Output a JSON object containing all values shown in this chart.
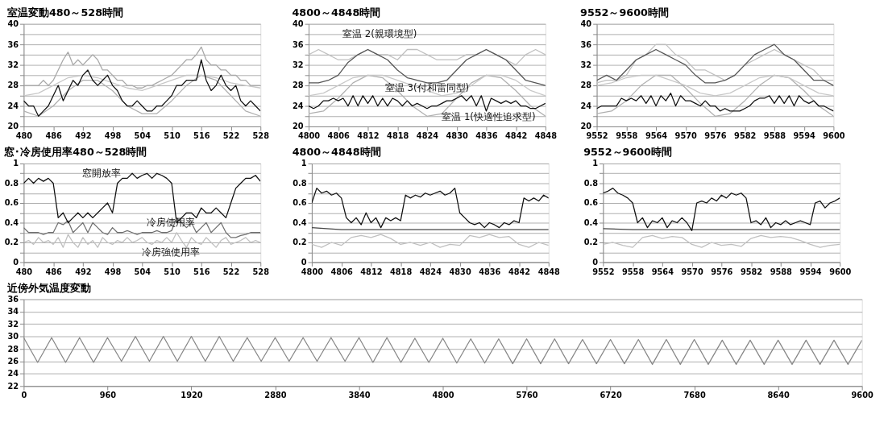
{
  "chart_data": [
    {
      "type": "line",
      "title": "室温変動480～528時間",
      "xlim": [
        480,
        528
      ],
      "xticks": [
        480,
        486,
        492,
        498,
        504,
        510,
        516,
        522,
        528
      ],
      "ylim": [
        20,
        40
      ],
      "yticks": [
        20,
        {
          "value": 22,
          "label": null
        },
        24,
        {
          "value": 26,
          "label": null
        },
        28,
        {
          "value": 30,
          "label": null
        },
        32,
        {
          "value": 34,
          "label": null
        },
        36,
        {
          "value": 38,
          "label": null
        },
        40
      ],
      "grid": "y",
      "series": [
        {
          "color": "#b0b0b0",
          "x": [
            480,
            483,
            486,
            489,
            492,
            495,
            498,
            501,
            504,
            507,
            510,
            513,
            516,
            519,
            522,
            525,
            528
          ],
          "values": [
            23,
            22,
            24,
            27,
            29,
            29,
            27,
            24,
            22.5,
            22.5,
            25,
            28,
            30,
            29,
            26,
            23,
            22
          ]
        },
        {
          "color": "#c8c8c8",
          "x": [
            480,
            483,
            486,
            489,
            492,
            495,
            498,
            501,
            504,
            507,
            510,
            513,
            516,
            519,
            522,
            525,
            528
          ],
          "values": [
            26,
            26.5,
            28,
            29.5,
            30,
            29.5,
            28.5,
            27.5,
            27,
            28,
            29,
            30,
            30,
            29.5,
            28.5,
            28,
            27.5
          ]
        },
        {
          "color": "#a8a8a8",
          "x": [
            480,
            481,
            482,
            483,
            484,
            485,
            486,
            487,
            488,
            489,
            490,
            491,
            492,
            493,
            494,
            495,
            496,
            497,
            498,
            499,
            500,
            501,
            502,
            503,
            504,
            505,
            506,
            507,
            508,
            509,
            510,
            511,
            512,
            513,
            514,
            515,
            516,
            517,
            518,
            519,
            520,
            521,
            522,
            523,
            524,
            525,
            526,
            527,
            528
          ],
          "values": [
            28,
            28,
            28,
            28,
            29,
            28,
            29,
            31,
            33,
            34.5,
            32,
            33,
            32,
            33,
            34,
            33,
            31,
            31,
            30,
            29,
            29,
            28,
            28,
            27.5,
            27.5,
            28,
            28,
            28.5,
            29,
            29.5,
            30,
            31,
            32,
            33,
            33,
            34,
            35.5,
            33,
            32,
            32,
            31,
            31,
            30,
            30,
            29,
            29,
            28,
            28,
            28
          ]
        },
        {
          "color": "#111111",
          "x": [
            480,
            481,
            482,
            483,
            484,
            485,
            486,
            487,
            488,
            489,
            490,
            491,
            492,
            493,
            494,
            495,
            496,
            497,
            498,
            499,
            500,
            501,
            502,
            503,
            504,
            505,
            506,
            507,
            508,
            509,
            510,
            511,
            512,
            513,
            514,
            515,
            516,
            517,
            518,
            519,
            520,
            521,
            522,
            523,
            524,
            525,
            526,
            527,
            528
          ],
          "values": [
            25,
            24,
            24,
            22,
            23,
            24,
            26,
            28,
            25,
            27,
            29,
            28,
            30,
            31,
            29,
            28,
            29,
            30,
            28,
            27,
            25,
            24,
            24,
            25,
            24,
            23,
            23,
            24,
            24,
            25,
            26,
            28,
            28,
            29,
            29,
            29,
            33,
            29,
            27,
            28,
            30,
            28,
            27,
            28,
            25,
            24,
            25,
            24,
            23
          ]
        }
      ]
    },
    {
      "type": "line",
      "title": "4800～4848時間",
      "xlim": [
        4800,
        4848
      ],
      "xticks": [
        4800,
        4806,
        4812,
        4818,
        4824,
        4830,
        4836,
        4842,
        4848
      ],
      "ylim": [
        20,
        40
      ],
      "yticks": [
        20,
        {
          "value": 22,
          "label": null
        },
        24,
        {
          "value": 26,
          "label": null
        },
        28,
        {
          "value": 30,
          "label": null
        },
        32,
        {
          "value": 34,
          "label": null
        },
        36,
        {
          "value": 38,
          "label": null
        },
        40
      ],
      "grid": "y",
      "annotations": [
        "室温 2(親環境型)",
        "室温 3(付和雷同型)",
        "室温 1(快適性追求型)"
      ],
      "series": [
        {
          "color": "#b0b0b0",
          "x": [
            4800,
            4803,
            4806,
            4809,
            4812,
            4815,
            4818,
            4821,
            4824,
            4827,
            4830,
            4833,
            4836,
            4839,
            4842,
            4845,
            4848
          ],
          "values": [
            22.5,
            23,
            25.5,
            28.5,
            30,
            29.5,
            27,
            24,
            22,
            22.5,
            25.5,
            28.5,
            30,
            29.5,
            27,
            24,
            22
          ]
        },
        {
          "color": "#c8c8c8",
          "x": [
            4800,
            4803,
            4806,
            4809,
            4812,
            4815,
            4818,
            4821,
            4824,
            4827,
            4830,
            4833,
            4836,
            4839,
            4842,
            4845,
            4848
          ],
          "values": [
            26,
            26.5,
            28,
            29.5,
            30,
            30,
            29,
            28,
            27,
            26,
            26.5,
            28,
            30,
            30,
            29,
            27,
            26
          ]
        },
        {
          "color": "#c0c0c0",
          "x": [
            4800,
            4802,
            4804,
            4806,
            4808,
            4810,
            4812,
            4814,
            4816,
            4818,
            4820,
            4822,
            4824,
            4826,
            4828,
            4830,
            4832,
            4834,
            4836,
            4838,
            4840,
            4842,
            4844,
            4846,
            4848
          ],
          "values": [
            34,
            35,
            34,
            33,
            33,
            34,
            35,
            34,
            34,
            33,
            35,
            35,
            34,
            33,
            33,
            33,
            34,
            34,
            35,
            34,
            33,
            32,
            34,
            35,
            34
          ]
        },
        {
          "color": "#555555",
          "x": [
            4800,
            4802,
            4804,
            4806,
            4808,
            4810,
            4812,
            4814,
            4816,
            4818,
            4820,
            4822,
            4824,
            4826,
            4828,
            4830,
            4832,
            4834,
            4836,
            4838,
            4840,
            4842,
            4844,
            4846,
            4848
          ],
          "values": [
            28.5,
            28.5,
            29,
            30,
            32.5,
            34,
            35,
            34,
            33,
            31,
            29.5,
            29,
            28.5,
            28.5,
            29,
            31,
            33,
            34,
            35,
            34,
            33,
            31,
            29,
            28.5,
            28
          ]
        },
        {
          "color": "#111111",
          "x": [
            4800,
            4801,
            4802,
            4803,
            4804,
            4805,
            4806,
            4807,
            4808,
            4809,
            4810,
            4811,
            4812,
            4813,
            4814,
            4815,
            4816,
            4817,
            4818,
            4819,
            4820,
            4821,
            4822,
            4823,
            4824,
            4825,
            4826,
            4827,
            4828,
            4829,
            4830,
            4831,
            4832,
            4833,
            4834,
            4835,
            4836,
            4837,
            4838,
            4839,
            4840,
            4841,
            4842,
            4843,
            4844,
            4845,
            4846,
            4847,
            4848
          ],
          "values": [
            24,
            23.5,
            24,
            25,
            25,
            25.5,
            25,
            25.5,
            24,
            26,
            24,
            26,
            24.5,
            26,
            24,
            25.5,
            24,
            25.5,
            25,
            24,
            25,
            24,
            24.5,
            24,
            23.5,
            24,
            24,
            24.5,
            25,
            25,
            25.5,
            26,
            25,
            26,
            24,
            26,
            23,
            25.5,
            25,
            24.5,
            25,
            24.5,
            25,
            24,
            24,
            23.5,
            23.5,
            24,
            24.5
          ]
        }
      ]
    },
    {
      "type": "line",
      "title": "9552～9600時間",
      "xlim": [
        9552,
        9600
      ],
      "xticks": [
        9552,
        9558,
        9564,
        9570,
        9576,
        9582,
        9588,
        9594,
        9600
      ],
      "ylim": [
        20,
        40
      ],
      "yticks": [
        20,
        {
          "value": 22,
          "label": null
        },
        24,
        {
          "value": 26,
          "label": null
        },
        28,
        {
          "value": 30,
          "label": null
        },
        32,
        {
          "value": 34,
          "label": null
        },
        36,
        {
          "value": 38,
          "label": null
        },
        40
      ],
      "grid": "y",
      "series": [
        {
          "color": "#b0b0b0",
          "x": [
            9552,
            9555,
            9558,
            9561,
            9564,
            9567,
            9570,
            9573,
            9576,
            9579,
            9582,
            9585,
            9588,
            9591,
            9594,
            9597,
            9600
          ],
          "values": [
            22.5,
            23,
            25,
            28,
            30,
            30,
            27.5,
            24.5,
            22,
            22.5,
            25,
            28,
            30,
            29.5,
            27,
            24,
            22
          ]
        },
        {
          "color": "#c8c8c8",
          "x": [
            9552,
            9555,
            9558,
            9561,
            9564,
            9567,
            9570,
            9573,
            9576,
            9579,
            9582,
            9585,
            9588,
            9591,
            9594,
            9597,
            9600
          ],
          "values": [
            28,
            28.5,
            29.5,
            30,
            30,
            29,
            28,
            26.5,
            26,
            26.5,
            28,
            29.5,
            30,
            29.5,
            28,
            26.5,
            26
          ]
        },
        {
          "color": "#c0c0c0",
          "x": [
            9552,
            9554,
            9556,
            9558,
            9560,
            9562,
            9564,
            9566,
            9568,
            9570,
            9572,
            9574,
            9576,
            9578,
            9580,
            9582,
            9584,
            9586,
            9588,
            9590,
            9592,
            9594,
            9596,
            9598,
            9600
          ],
          "values": [
            28.5,
            29,
            29,
            30,
            33,
            34,
            36,
            36,
            34,
            33,
            31,
            31,
            30,
            29,
            30,
            32,
            33,
            34,
            35,
            34,
            33,
            32,
            31,
            29,
            29
          ]
        },
        {
          "color": "#555555",
          "x": [
            9552,
            9554,
            9556,
            9558,
            9560,
            9562,
            9564,
            9566,
            9568,
            9570,
            9572,
            9574,
            9576,
            9578,
            9580,
            9582,
            9584,
            9586,
            9588,
            9590,
            9592,
            9594,
            9596,
            9598,
            9600
          ],
          "values": [
            29,
            30,
            29,
            31,
            33,
            34,
            35,
            34,
            33,
            32,
            30,
            28.5,
            28.5,
            29,
            30,
            32,
            34,
            35,
            36,
            34,
            33,
            31,
            29,
            29,
            28
          ]
        },
        {
          "color": "#111111",
          "x": [
            9552,
            9553,
            9554,
            9555,
            9556,
            9557,
            9558,
            9559,
            9560,
            9561,
            9562,
            9563,
            9564,
            9565,
            9566,
            9567,
            9568,
            9569,
            9570,
            9571,
            9572,
            9573,
            9574,
            9575,
            9576,
            9577,
            9578,
            9579,
            9580,
            9581,
            9582,
            9583,
            9584,
            9585,
            9586,
            9587,
            9588,
            9589,
            9590,
            9591,
            9592,
            9593,
            9594,
            9595,
            9596,
            9597,
            9598,
            9599,
            9600
          ],
          "values": [
            23.5,
            24,
            24,
            24,
            24,
            25.5,
            25,
            25.5,
            25,
            26,
            24.5,
            26,
            24,
            26,
            25,
            26.5,
            24,
            26,
            25,
            25,
            24.5,
            24,
            25,
            24,
            24,
            23,
            23.5,
            23,
            23,
            23,
            23.5,
            24,
            25,
            25.5,
            25.5,
            26,
            24.5,
            26,
            24.5,
            26,
            24,
            26,
            25,
            24.5,
            25,
            24,
            24,
            23.5,
            23
          ]
        }
      ]
    },
    {
      "type": "line",
      "title": "窓･冷房使用率480～528時間",
      "xlim": [
        480,
        528
      ],
      "xticks": [
        480,
        486,
        492,
        498,
        504,
        510,
        516,
        522,
        528
      ],
      "ylim": [
        0,
        1
      ],
      "yticks": [
        0,
        {
          "value": 0.1,
          "label": null
        },
        0.2,
        {
          "value": 0.3,
          "label": null
        },
        0.4,
        {
          "value": 0.5,
          "label": null
        },
        0.6,
        {
          "value": 0.7,
          "label": null
        },
        0.8,
        {
          "value": 0.9,
          "label": null
        },
        1
      ],
      "grid": "y",
      "annotations": [
        "窓開放率",
        "冷房使用率",
        "冷房強使用率"
      ],
      "series": [
        {
          "color": "#c0c0c0",
          "x": [
            480,
            481,
            482,
            483,
            484,
            485,
            486,
            487,
            488,
            489,
            490,
            491,
            492,
            493,
            494,
            495,
            496,
            497,
            498,
            499,
            500,
            501,
            502,
            503,
            504,
            505,
            506,
            507,
            508,
            509,
            510,
            511,
            512,
            513,
            514,
            515,
            516,
            517,
            518,
            519,
            520,
            521,
            522,
            523,
            524,
            525,
            526,
            527,
            528
          ],
          "values": [
            0.2,
            0.22,
            0.18,
            0.25,
            0.2,
            0.22,
            0.18,
            0.25,
            0.15,
            0.28,
            0.2,
            0.15,
            0.25,
            0.18,
            0.22,
            0.15,
            0.25,
            0.2,
            0.18,
            0.22,
            0.2,
            0.25,
            0.2,
            0.22,
            0.25,
            0.2,
            0.18,
            0.22,
            0.2,
            0.25,
            0.2,
            0.3,
            0.22,
            0.15,
            0.25,
            0.2,
            0.18,
            0.25,
            0.2,
            0.15,
            0.22,
            0.25,
            0.18,
            0.2,
            0.22,
            0.25,
            0.2,
            0.22,
            0.2
          ]
        },
        {
          "color": "#707070",
          "x": [
            480,
            481,
            482,
            483,
            484,
            485,
            486,
            487,
            488,
            489,
            490,
            491,
            492,
            493,
            494,
            495,
            496,
            497,
            498,
            499,
            500,
            501,
            502,
            503,
            504,
            505,
            506,
            507,
            508,
            509,
            510,
            511,
            512,
            513,
            514,
            515,
            516,
            517,
            518,
            519,
            520,
            521,
            522,
            523,
            524,
            525,
            526,
            527,
            528
          ],
          "values": [
            0.35,
            0.3,
            0.3,
            0.3,
            0.28,
            0.3,
            0.3,
            0.4,
            0.38,
            0.42,
            0.3,
            0.35,
            0.4,
            0.3,
            0.4,
            0.35,
            0.3,
            0.28,
            0.35,
            0.3,
            0.3,
            0.32,
            0.3,
            0.28,
            0.3,
            0.3,
            0.3,
            0.32,
            0.3,
            0.3,
            0.32,
            0.45,
            0.4,
            0.35,
            0.4,
            0.3,
            0.35,
            0.4,
            0.3,
            0.35,
            0.4,
            0.3,
            0.25,
            0.25,
            0.27,
            0.28,
            0.3,
            0.3,
            0.3
          ]
        },
        {
          "color": "#111111",
          "x": [
            480,
            481,
            482,
            483,
            484,
            485,
            486,
            487,
            488,
            489,
            490,
            491,
            492,
            493,
            494,
            495,
            496,
            497,
            498,
            499,
            500,
            501,
            502,
            503,
            504,
            505,
            506,
            507,
            508,
            509,
            510,
            511,
            512,
            513,
            514,
            515,
            516,
            517,
            518,
            519,
            520,
            521,
            522,
            523,
            524,
            525,
            526,
            527,
            528
          ],
          "values": [
            0.8,
            0.85,
            0.8,
            0.85,
            0.82,
            0.85,
            0.8,
            0.45,
            0.5,
            0.4,
            0.45,
            0.5,
            0.45,
            0.5,
            0.45,
            0.5,
            0.55,
            0.6,
            0.5,
            0.8,
            0.85,
            0.85,
            0.9,
            0.85,
            0.88,
            0.9,
            0.85,
            0.9,
            0.88,
            0.85,
            0.8,
            0.4,
            0.45,
            0.5,
            0.5,
            0.45,
            0.55,
            0.5,
            0.5,
            0.55,
            0.5,
            0.45,
            0.6,
            0.75,
            0.8,
            0.85,
            0.85,
            0.88,
            0.82
          ]
        }
      ]
    },
    {
      "type": "line",
      "title": "4800～4848時間",
      "xlim": [
        4800,
        4848
      ],
      "xticks": [
        4800,
        4806,
        4812,
        4818,
        4824,
        4830,
        4836,
        4842,
        4848
      ],
      "ylim": [
        0,
        1
      ],
      "yticks": [
        0,
        {
          "value": 0.1,
          "label": null
        },
        0.2,
        {
          "value": 0.3,
          "label": null
        },
        0.4,
        {
          "value": 0.5,
          "label": null
        },
        0.6,
        {
          "value": 0.7,
          "label": null
        },
        0.8,
        {
          "value": 0.9,
          "label": null
        },
        1
      ],
      "grid": "y",
      "series": [
        {
          "color": "#c0c0c0",
          "x": [
            4800,
            4802,
            4804,
            4806,
            4808,
            4810,
            4812,
            4814,
            4816,
            4818,
            4820,
            4822,
            4824,
            4826,
            4828,
            4830,
            4832,
            4834,
            4836,
            4838,
            4840,
            4842,
            4844,
            4846,
            4848
          ],
          "values": [
            0.18,
            0.15,
            0.2,
            0.17,
            0.25,
            0.27,
            0.25,
            0.28,
            0.24,
            0.18,
            0.2,
            0.17,
            0.2,
            0.15,
            0.18,
            0.17,
            0.27,
            0.25,
            0.28,
            0.25,
            0.26,
            0.18,
            0.15,
            0.2,
            0.17
          ]
        },
        {
          "color": "#444444",
          "x": [
            4800,
            4806,
            4812,
            4818,
            4824,
            4830,
            4836,
            4842,
            4848
          ],
          "values": [
            0.35,
            0.33,
            0.33,
            0.33,
            0.33,
            0.33,
            0.33,
            0.33,
            0.33
          ]
        },
        {
          "color": "#111111",
          "x": [
            4800,
            4801,
            4802,
            4803,
            4804,
            4805,
            4806,
            4807,
            4808,
            4809,
            4810,
            4811,
            4812,
            4813,
            4814,
            4815,
            4816,
            4817,
            4818,
            4819,
            4820,
            4821,
            4822,
            4823,
            4824,
            4825,
            4826,
            4827,
            4828,
            4829,
            4830,
            4831,
            4832,
            4833,
            4834,
            4835,
            4836,
            4837,
            4838,
            4839,
            4840,
            4841,
            4842,
            4843,
            4844,
            4845,
            4846,
            4847,
            4848
          ],
          "values": [
            0.6,
            0.75,
            0.7,
            0.72,
            0.68,
            0.7,
            0.65,
            0.45,
            0.4,
            0.45,
            0.38,
            0.5,
            0.4,
            0.45,
            0.35,
            0.45,
            0.42,
            0.45,
            0.42,
            0.68,
            0.65,
            0.68,
            0.66,
            0.7,
            0.68,
            0.7,
            0.72,
            0.68,
            0.7,
            0.75,
            0.5,
            0.45,
            0.4,
            0.38,
            0.4,
            0.35,
            0.4,
            0.38,
            0.35,
            0.4,
            0.38,
            0.42,
            0.4,
            0.65,
            0.62,
            0.65,
            0.62,
            0.68,
            0.65
          ]
        }
      ]
    },
    {
      "type": "line",
      "title": "9552～9600時間",
      "xlim": [
        9552,
        9600
      ],
      "xticks": [
        9552,
        9558,
        9564,
        9570,
        9576,
        9582,
        9588,
        9594,
        9600
      ],
      "ylim": [
        0,
        1
      ],
      "yticks": [
        0,
        {
          "value": 0.1,
          "label": null
        },
        0.2,
        {
          "value": 0.3,
          "label": null
        },
        0.4,
        {
          "value": 0.5,
          "label": null
        },
        0.6,
        {
          "value": 0.7,
          "label": null
        },
        0.8,
        {
          "value": 0.9,
          "label": null
        },
        1
      ],
      "grid": "y",
      "series": [
        {
          "color": "#c0c0c0",
          "x": [
            9552,
            9554,
            9556,
            9558,
            9560,
            9562,
            9564,
            9566,
            9568,
            9570,
            9572,
            9574,
            9576,
            9578,
            9580,
            9582,
            9584,
            9586,
            9588,
            9590,
            9592,
            9594,
            9596,
            9598,
            9600
          ],
          "values": [
            0.18,
            0.2,
            0.17,
            0.15,
            0.25,
            0.27,
            0.24,
            0.26,
            0.25,
            0.18,
            0.15,
            0.2,
            0.17,
            0.18,
            0.16,
            0.24,
            0.27,
            0.25,
            0.26,
            0.25,
            0.22,
            0.18,
            0.15,
            0.17,
            0.18
          ]
        },
        {
          "color": "#444444",
          "x": [
            9552,
            9558,
            9564,
            9570,
            9576,
            9582,
            9588,
            9594,
            9600
          ],
          "values": [
            0.34,
            0.33,
            0.33,
            0.33,
            0.33,
            0.33,
            0.33,
            0.33,
            0.33
          ]
        },
        {
          "color": "#111111",
          "x": [
            9552,
            9553,
            9554,
            9555,
            9556,
            9557,
            9558,
            9559,
            9560,
            9561,
            9562,
            9563,
            9564,
            9565,
            9566,
            9567,
            9568,
            9569,
            9570,
            9571,
            9572,
            9573,
            9574,
            9575,
            9576,
            9577,
            9578,
            9579,
            9580,
            9581,
            9582,
            9583,
            9584,
            9585,
            9586,
            9587,
            9588,
            9589,
            9590,
            9591,
            9592,
            9593,
            9594,
            9595,
            9596,
            9597,
            9598,
            9599,
            9600
          ],
          "values": [
            0.7,
            0.72,
            0.75,
            0.7,
            0.68,
            0.65,
            0.6,
            0.4,
            0.45,
            0.35,
            0.42,
            0.4,
            0.45,
            0.35,
            0.42,
            0.4,
            0.45,
            0.4,
            0.32,
            0.6,
            0.62,
            0.6,
            0.65,
            0.62,
            0.68,
            0.65,
            0.7,
            0.68,
            0.7,
            0.65,
            0.4,
            0.42,
            0.38,
            0.45,
            0.35,
            0.4,
            0.38,
            0.42,
            0.38,
            0.4,
            0.42,
            0.4,
            0.38,
            0.6,
            0.62,
            0.55,
            0.6,
            0.62,
            0.65
          ]
        }
      ]
    },
    {
      "type": "line",
      "title": "近傍外気温度変動",
      "xlim": [
        0,
        9600
      ],
      "xticks": [
        0,
        960,
        1920,
        2880,
        3840,
        4800,
        5760,
        6720,
        7680,
        8640,
        9600
      ],
      "ylim": [
        22,
        36
      ],
      "yticks": [
        22,
        24,
        26,
        28,
        30,
        32,
        34,
        36
      ],
      "grid": "y",
      "series": [
        {
          "color": "#888888",
          "x": [
            0,
            160,
            320,
            480,
            640,
            800,
            960,
            1120,
            1280,
            1440,
            1600,
            1760,
            1920,
            2080,
            2240,
            2400,
            2560,
            2720,
            2880,
            3040,
            3200,
            3360,
            3520,
            3680,
            3840,
            4000,
            4160,
            4320,
            4480,
            4640,
            4800,
            4960,
            5120,
            5280,
            5440,
            5600,
            5760,
            5920,
            6080,
            6240,
            6400,
            6560,
            6720,
            6880,
            7040,
            7200,
            7360,
            7520,
            7680,
            7840,
            8000,
            8160,
            8320,
            8480,
            8640,
            8800,
            8960,
            9120,
            9280,
            9440,
            9600
          ],
          "values": [
            29.8,
            25.8,
            29.8,
            25.8,
            29.8,
            25.8,
            29.8,
            26,
            30,
            26,
            30,
            26,
            30,
            26,
            30,
            26,
            29.8,
            26,
            29.8,
            26,
            29.8,
            26,
            29.8,
            26,
            29.8,
            25.8,
            29.8,
            25.8,
            29.7,
            25.8,
            29.7,
            25.7,
            29.6,
            25.7,
            29.6,
            25.6,
            29.6,
            25.6,
            29.6,
            25.6,
            29.5,
            25.6,
            29.5,
            25.6,
            29.5,
            25.5,
            29.5,
            25.5,
            29.5,
            25.5,
            29.4,
            25.5,
            29.4,
            25.5,
            29.4,
            25.5,
            29.4,
            25.5,
            29.4,
            25.5,
            29.4
          ]
        }
      ]
    }
  ]
}
